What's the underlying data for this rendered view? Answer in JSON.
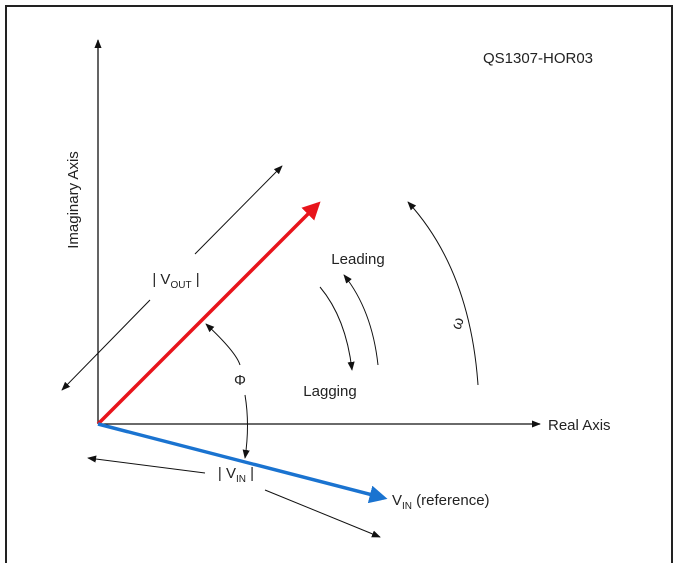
{
  "figure_id": "QS1307-HOR03",
  "axes": {
    "imaginary": "Imaginary Axis",
    "real": "Real Axis"
  },
  "vout_label": {
    "prefix": "| V",
    "sub": "OUT",
    "suffix": " |"
  },
  "vin_label": {
    "prefix": "| V",
    "sub": "IN",
    "suffix": " |"
  },
  "vin_reference": {
    "prefix": "V",
    "sub": "IN",
    "suffix": " (reference)"
  },
  "leading": "Leading",
  "lagging": "Lagging",
  "phi": "Φ",
  "omega": "ω"
}
